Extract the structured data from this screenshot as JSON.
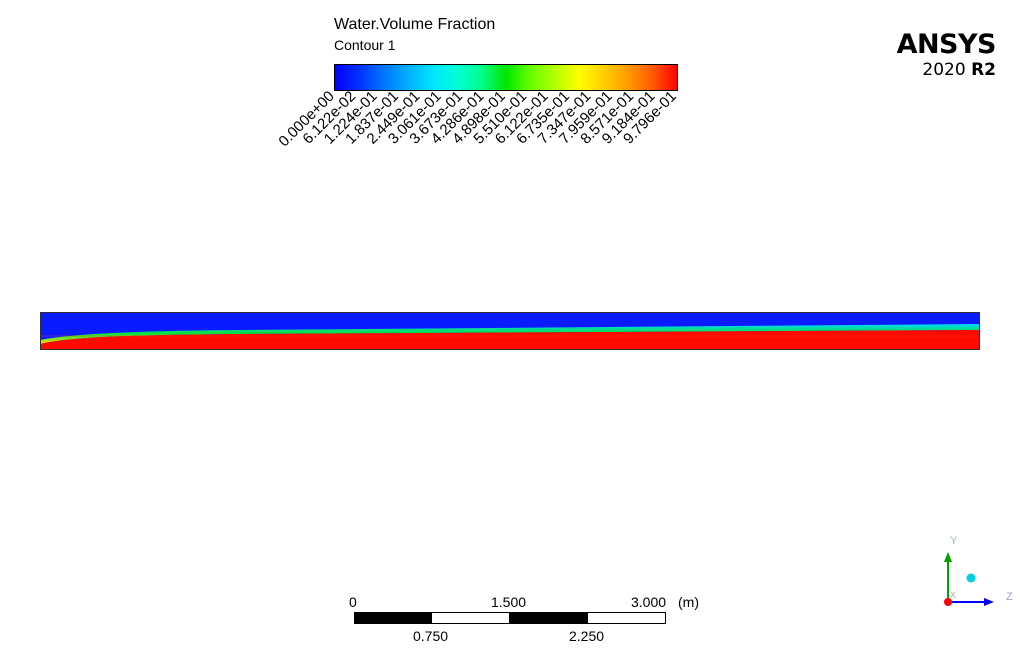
{
  "legend": {
    "title": "Water.Volume Fraction",
    "subtitle": "Contour 1",
    "colormap": [
      "#0000ff",
      "#0033ff",
      "#0077ff",
      "#00b0ff",
      "#00e5ff",
      "#00ffd5",
      "#00ff8a",
      "#00e600",
      "#66ff00",
      "#b3ff00",
      "#ffff00",
      "#ffd000",
      "#ff9a00",
      "#ff5a00",
      "#ff0000"
    ],
    "ticks": [
      "0.000e+00",
      "6.122e-02",
      "1.224e-01",
      "1.837e-01",
      "2.449e-01",
      "3.061e-01",
      "3.673e-01",
      "4.286e-01",
      "4.898e-01",
      "5.510e-01",
      "6.122e-01",
      "6.735e-01",
      "7.347e-01",
      "7.959e-01",
      "8.571e-01",
      "9.184e-01",
      "9.796e-01"
    ]
  },
  "brand": {
    "name": "ANSYS",
    "version_year": "2020",
    "version_release": "R2"
  },
  "contour": {
    "colors": {
      "air": "#0a1cff",
      "water": "#ff0a00",
      "interface_low": "#00d8ff",
      "interface_mid": "#00e040",
      "interface_high": "#ffe000"
    }
  },
  "scale_bar": {
    "top_labels": [
      "0",
      "1.500",
      "3.000"
    ],
    "bottom_labels": [
      "0.750",
      "2.250"
    ],
    "unit": "(m)"
  },
  "axes_triad": {
    "y_label": "Y",
    "z_label": "Z",
    "x_label": "X",
    "colors": {
      "y": "#00a000",
      "z": "#0000ff",
      "x": "#ff0000",
      "y_label": "#9fbf9f",
      "z_label": "#9f9fcf",
      "x_label": "#d0a0a0",
      "dot": "#00d0e0"
    }
  }
}
